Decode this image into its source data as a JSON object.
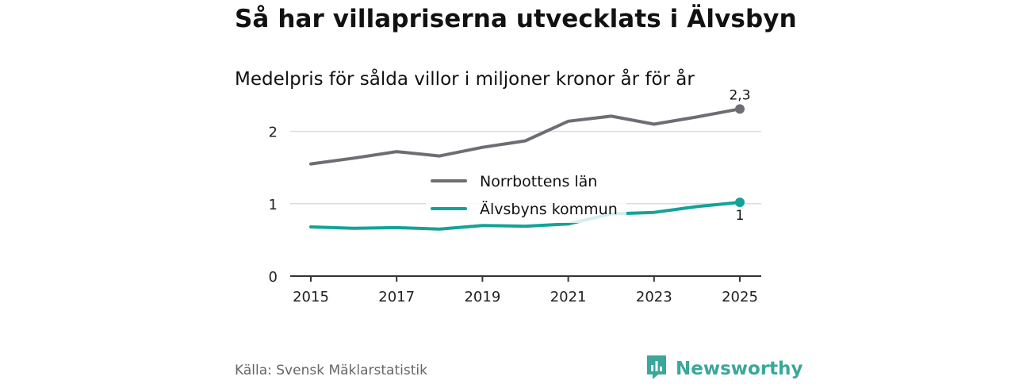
{
  "title": "Så har villapriserna utvecklats i Älvsbyn",
  "subtitle": "Medelpris för sålda villor i miljoner kronor år för år",
  "source": "Källa: Svensk Mäklarstatistik",
  "brand": {
    "name": "Newsworthy",
    "icon": "newsworthy-logo-icon",
    "color": "#3aa79a"
  },
  "chart_data": {
    "type": "line",
    "title": "Så har villapriserna utvecklats i Älvsbyn",
    "subtitle": "Medelpris för sålda villor i miljoner kronor år för år",
    "xlabel": "",
    "ylabel": "",
    "x": [
      2015,
      2016,
      2017,
      2018,
      2019,
      2020,
      2021,
      2022,
      2023,
      2024,
      2025
    ],
    "x_ticks": [
      2015,
      2017,
      2019,
      2021,
      2023,
      2025
    ],
    "y_ticks": [
      0,
      1,
      2
    ],
    "ylim": [
      0,
      2.5
    ],
    "xlim": [
      2015,
      2025
    ],
    "grid": true,
    "legend_position": "center",
    "series": [
      {
        "name": "Norrbottens län",
        "color": "#6f6d73",
        "values": [
          1.55,
          1.63,
          1.72,
          1.66,
          1.78,
          1.87,
          2.14,
          2.21,
          2.1,
          2.2,
          2.31
        ],
        "end_label": "2,3"
      },
      {
        "name": "Älvsbyns kommun",
        "color": "#13a398",
        "values": [
          0.68,
          0.66,
          0.67,
          0.65,
          0.7,
          0.69,
          0.72,
          0.86,
          0.88,
          0.96,
          1.02
        ],
        "end_label": "1"
      }
    ]
  }
}
